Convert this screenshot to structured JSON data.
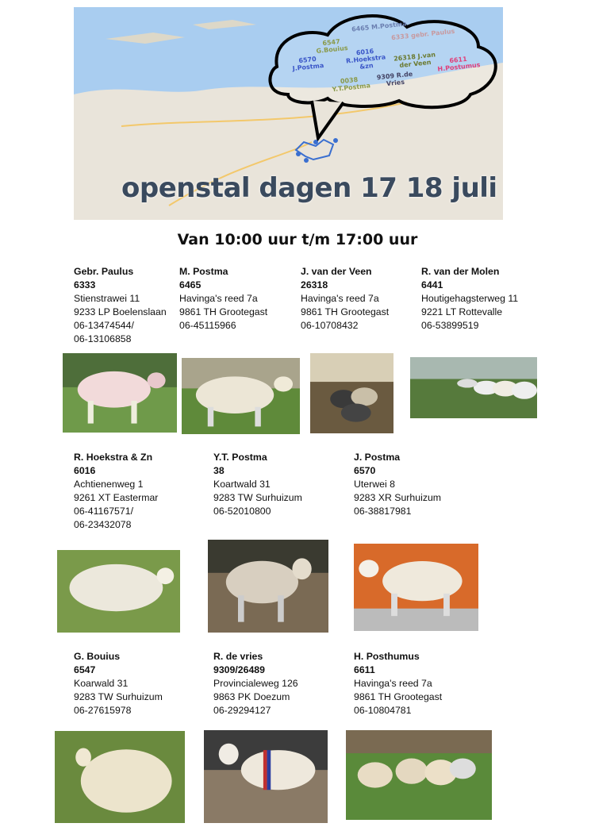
{
  "map": {
    "title": "openstal dagen 17 18 juli",
    "callout_labels": [
      {
        "text": "6465 M.Postma",
        "color": "#6b7fb0"
      },
      {
        "text": "6333 gebr. Paulus",
        "color": "#c79aa0"
      },
      {
        "text": "6547 G.Bouius",
        "color": "#8a9a4a"
      },
      {
        "text": "6016 R.Hoekstra &zn",
        "color": "#3a56c8"
      },
      {
        "text": "6570 J.Postma",
        "color": "#3a56c8"
      },
      {
        "text": "26318 J.van der Veen",
        "color": "#6b7a30"
      },
      {
        "text": "6611 H.Postumus",
        "color": "#e0407a"
      },
      {
        "text": "0038 Y.T.Postma",
        "color": "#8a9a4a"
      },
      {
        "text": "9309 R.de Vries",
        "color": "#444466"
      }
    ]
  },
  "hours": "Van 10:00 uur t/m 17:00 uur",
  "breeders": [
    {
      "name": "Gebr. Paulus",
      "number": "6333",
      "lines": [
        "Stienstrawei 11",
        "9233 LP Boelenslaan",
        "06-13474544/",
        "06-13106858"
      ]
    },
    {
      "name": "M. Postma",
      "number": "6465",
      "lines": [
        "Havinga's reed  7a",
        "9861 TH Grootegast",
        "06-45115966"
      ]
    },
    {
      "name": "J. van der Veen",
      "number": "26318",
      "lines": [
        "Havinga's reed 7a",
        "9861 TH Grootegast",
        "06-10708432"
      ]
    },
    {
      "name": "R. van der Molen",
      "number": "6441",
      "lines": [
        "Houtigehagsterweg 11",
        "9221 LT Rottevalle",
        "06-53899519"
      ]
    },
    {
      "name": "R. Hoekstra & Zn",
      "number": "6016",
      "lines": [
        "Achtienenweg 1",
        "9261 XT Eastermar",
        "06-41167571/",
        "06-23432078"
      ]
    },
    {
      "name": "Y.T. Postma",
      "number": "38",
      "lines": [
        "Koartwald 31",
        "9283 TW Surhuizum",
        "06-52010800"
      ]
    },
    {
      "name": "J. Postma",
      "number": "6570",
      "lines": [
        "Uterwei 8",
        "9283 XR Surhuizum",
        "06-38817981"
      ]
    },
    {
      "name": "G. Bouius",
      "number": "6547",
      "lines": [
        "Koarwald 31",
        "9283 TW Surhuizum",
        "06-27615978"
      ]
    },
    {
      "name": "R. de vries",
      "number": "9309/26489",
      "lines": [
        "Provincialeweg 126",
        "9863 PK Doezum",
        "06-29294127"
      ]
    },
    {
      "name": "H. Posthumus",
      "number": "6611",
      "lines": [
        "Havinga's reed  7a",
        "9861 TH Grootegast",
        "06-10804781"
      ]
    }
  ]
}
